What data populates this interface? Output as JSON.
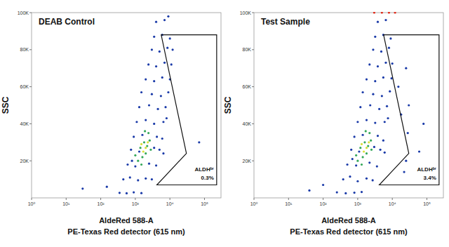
{
  "chart_data": [
    {
      "type": "scatter",
      "title": "DEAB Control",
      "x_label": "AldeRed 588-A",
      "x_sublabel": "PE-Texas Red detector (615 nm)",
      "y_label": "SSC",
      "log": "x",
      "marker": "dot",
      "xlim": [
        1,
        300000
      ],
      "xticks": [
        {
          "value": 1,
          "label": "10⁰"
        },
        {
          "value": 10,
          "label": "10¹"
        },
        {
          "value": 100,
          "label": "10²"
        },
        {
          "value": 1000,
          "label": "10³"
        },
        {
          "value": 10000,
          "label": "10⁴"
        },
        {
          "value": 100000,
          "label": "10⁵"
        }
      ],
      "ylim": [
        0,
        100000
      ],
      "yticks": [
        {
          "value": 20000,
          "label": "20K"
        },
        {
          "value": 40000,
          "label": "40K"
        },
        {
          "value": 60000,
          "label": "60K"
        },
        {
          "value": 80000,
          "label": "80K"
        },
        {
          "value": 100000,
          "label": "100K"
        }
      ],
      "series": [
        {
          "color": "#1a3aa8",
          "x": [
            350,
            560,
            900,
            1500,
            450,
            700,
            1200,
            2000,
            3000,
            600,
            1000,
            2500,
            4000,
            800,
            750,
            1300,
            3500,
            5000,
            6500,
            900,
            1600,
            4200,
            6000,
            1100,
            2000,
            3500,
            6500,
            8000,
            1300,
            2500,
            4500,
            7500,
            1500,
            3000,
            5500,
            9000,
            2000,
            3500,
            6000,
            10000,
            2400,
            4000,
            7000,
            11000,
            3000,
            5000,
            8500,
            12000,
            3500,
            6000,
            10000,
            4000,
            7000,
            9000,
            150,
            30,
            70000
          ],
          "values": [
            2700,
            2500,
            3000,
            2600,
            10000,
            11000,
            9500,
            10500,
            10000,
            18000,
            17000,
            18500,
            17500,
            20000,
            26000,
            25000,
            27000,
            26000,
            24000,
            33000,
            34000,
            33000,
            32000,
            41000,
            42000,
            40000,
            41000,
            43000,
            49000,
            50000,
            48000,
            49000,
            57000,
            56000,
            55000,
            57000,
            64000,
            63000,
            65000,
            64000,
            72000,
            71000,
            73000,
            72000,
            80000,
            79000,
            81000,
            80000,
            87000,
            88000,
            86000,
            95000,
            96000,
            98000,
            6000,
            5000,
            30000
          ]
        },
        {
          "color": "#35a85a",
          "x": [
            1200,
            1600,
            2000,
            1400,
            2200,
            1800,
            2600,
            1500,
            2400,
            1900,
            1000,
            2800
          ],
          "values": [
            20000,
            22000,
            24000,
            27000,
            28000,
            30000,
            31000,
            18000,
            35000,
            36000,
            23000,
            26000
          ]
        },
        {
          "color": "#d9e03a",
          "x": [
            1700,
            2000,
            1500,
            2300
          ],
          "values": [
            25000,
            27000,
            29000,
            30000
          ]
        }
      ],
      "gate": {
        "points": [
          [
            5600,
            88000
          ],
          [
            225000,
            88000
          ],
          [
            225000,
            7000
          ],
          [
            4200,
            7000
          ],
          [
            30000,
            24000
          ]
        ],
        "label": "ALDHᵇʳ",
        "percent": "0.3%"
      }
    },
    {
      "type": "scatter",
      "title": "Test Sample",
      "x_label": "AldeRed 588-A",
      "x_sublabel": "PE-Texas Red detector (615 nm)",
      "y_label": "SSC",
      "log": "x",
      "marker": "dot",
      "xlim": [
        1,
        300000
      ],
      "xticks": [
        {
          "value": 1,
          "label": "10⁰"
        },
        {
          "value": 10,
          "label": "10¹"
        },
        {
          "value": 100,
          "label": "10²"
        },
        {
          "value": 1000,
          "label": "10³"
        },
        {
          "value": 10000,
          "label": "10⁴"
        },
        {
          "value": 100000,
          "label": "10⁵"
        }
      ],
      "ylim": [
        0,
        100000
      ],
      "yticks": [
        {
          "value": 20000,
          "label": "20K"
        },
        {
          "value": 40000,
          "label": "40K"
        },
        {
          "value": 60000,
          "label": "60K"
        },
        {
          "value": 80000,
          "label": "80K"
        },
        {
          "value": 100000,
          "label": "100K"
        }
      ],
      "series": [
        {
          "color": "#1a3aa8",
          "x": [
            250,
            450,
            800,
            1300,
            380,
            600,
            1000,
            1800,
            2700,
            500,
            900,
            2200,
            3600,
            700,
            650,
            1100,
            3000,
            4500,
            6000,
            800,
            1400,
            3800,
            5500,
            1000,
            1800,
            3200,
            6000,
            7500,
            1200,
            2300,
            4200,
            7000,
            1400,
            2800,
            5000,
            8500,
            1800,
            3200,
            5500,
            9500,
            2200,
            3800,
            6500,
            10000,
            2800,
            4800,
            8000,
            3200,
            5500,
            9000,
            3800,
            6500,
            100,
            40
          ],
          "values": [
            3000,
            2500,
            2800,
            3200,
            10000,
            11500,
            9000,
            10500,
            9500,
            18000,
            17500,
            19000,
            17000,
            21000,
            26000,
            25000,
            27500,
            26000,
            24500,
            33000,
            34000,
            33500,
            31000,
            41000,
            42000,
            40500,
            41000,
            43000,
            49000,
            50000,
            48000,
            49500,
            57000,
            56000,
            55000,
            57500,
            64000,
            63000,
            65000,
            64500,
            72000,
            71000,
            73000,
            72500,
            80000,
            79000,
            81000,
            87000,
            88000,
            86000,
            95000,
            96000,
            7000,
            4000
          ]
        },
        {
          "color": "#35a85a",
          "x": [
            1000,
            1400,
            1800,
            1200,
            2000,
            1600,
            2400,
            1300,
            2200,
            1700,
            900,
            2500
          ],
          "values": [
            20000,
            22000,
            24000,
            27000,
            28000,
            30000,
            31000,
            18000,
            35000,
            36000,
            23000,
            26000
          ]
        },
        {
          "color": "#d9e03a",
          "x": [
            1500,
            1800,
            1300,
            2100
          ],
          "values": [
            25000,
            27000,
            29000,
            30000
          ]
        },
        {
          "color": "#e03020",
          "x": [
            3000,
            5000,
            8000,
            12000
          ],
          "values": [
            100000,
            100000,
            100000,
            100000
          ]
        },
        {
          "color": "#1a3aa8",
          "x": [
            25000,
            28000,
            30000,
            15000,
            60000,
            25000,
            22000,
            18000,
            80000
          ],
          "values": [
            20000,
            35000,
            50000,
            60000,
            25000,
            70000,
            14000,
            45000,
            40000
          ]
        }
      ],
      "gate": {
        "points": [
          [
            5600,
            88000
          ],
          [
            225000,
            88000
          ],
          [
            225000,
            7000
          ],
          [
            4200,
            7000
          ],
          [
            30000,
            24000
          ]
        ],
        "label": "ALDHᵇʳ",
        "percent": "3.4%"
      }
    }
  ]
}
